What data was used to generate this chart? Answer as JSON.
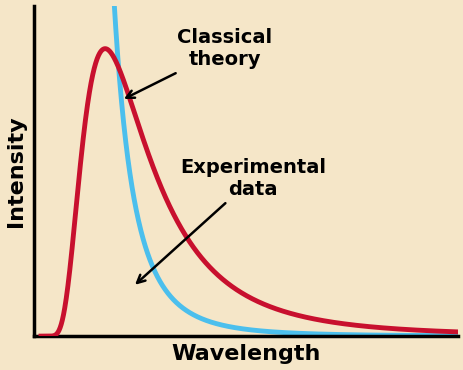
{
  "background_color": "#f5e6c8",
  "xlabel": "Wavelength",
  "ylabel": "Intensity",
  "xlabel_fontsize": 16,
  "ylabel_fontsize": 16,
  "xlabel_fontweight": "bold",
  "ylabel_fontweight": "bold",
  "classical_color": "#4bbfed",
  "experimental_color": "#c8102e",
  "line_width": 3.5,
  "annotation_classical": "Classical\ntheory",
  "annotation_experimental": "Experimental\ndata",
  "annotation_fontsize": 14,
  "annotation_fontweight": "bold",
  "arrow_color": "black",
  "figsize": [
    4.64,
    3.7
  ],
  "dpi": 100
}
